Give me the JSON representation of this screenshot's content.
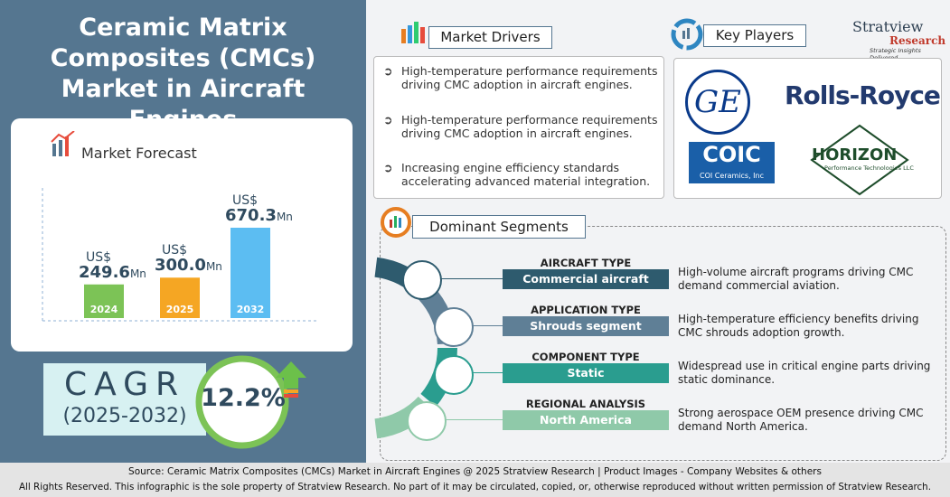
{
  "title": "Ceramic Matrix Composites (CMCs) Market in Aircraft Engines",
  "brand": {
    "name": "Stratview",
    "sub": "Research",
    "tagline": "Strategic Insights Delivered"
  },
  "chart_data": {
    "type": "bar",
    "title": "Market Forecast",
    "categories": [
      "2024",
      "2025",
      "2032"
    ],
    "values": [
      249.6,
      300.0,
      670.3
    ],
    "value_labels": [
      "249.6",
      "300.0",
      "670.3"
    ],
    "currency": "US$",
    "unit": "Mn",
    "colors": [
      "#7cc356",
      "#f5a623",
      "#5cbdf2"
    ]
  },
  "cagr": {
    "label": "CAGR",
    "period": "(2025-2032)",
    "value": 12.2,
    "value_label": "12.2%"
  },
  "drivers": {
    "title": "Market Drivers",
    "items": [
      "High-temperature performance requirements driving CMC adoption in aircraft engines.",
      "High-temperature performance requirements driving CMC adoption in aircraft engines.",
      "Increasing engine efficiency standards accelerating advanced material integration."
    ]
  },
  "players": {
    "title": "Key Players",
    "logos": [
      "GE",
      "Rolls-Royce",
      "COIC",
      "COI Ceramics, Inc",
      "HORIZON",
      "Performance Technologies LLC"
    ]
  },
  "segments": {
    "title": "Dominant Segments",
    "items": [
      {
        "type": "AIRCRAFT TYPE",
        "name": "Commercial aircraft",
        "description": "High-volume aircraft programs driving CMC demand commercial aviation."
      },
      {
        "type": "APPLICATION TYPE",
        "name": "Shrouds segment",
        "description": "High-temperature efficiency benefits driving CMC shrouds adoption growth."
      },
      {
        "type": "COMPONENT TYPE",
        "name": "Static",
        "description": "Widespread use in critical engine parts driving static dominance."
      },
      {
        "type": "REGIONAL ANALYSIS",
        "name": "North America",
        "description": "Strong aerospace OEM presence driving CMC demand North America."
      }
    ]
  },
  "footer": {
    "source": "Source:  Ceramic Matrix Composites (CMCs) Market in Aircraft Engines  @ 2025 Stratview Research | Product Images  - Company Websites & others",
    "rights": "All Rights Reserved. This infographic is the sole property of Stratview Research. No part of it may be circulated, copied, or, otherwise reproduced without written permission of Stratview Research."
  }
}
